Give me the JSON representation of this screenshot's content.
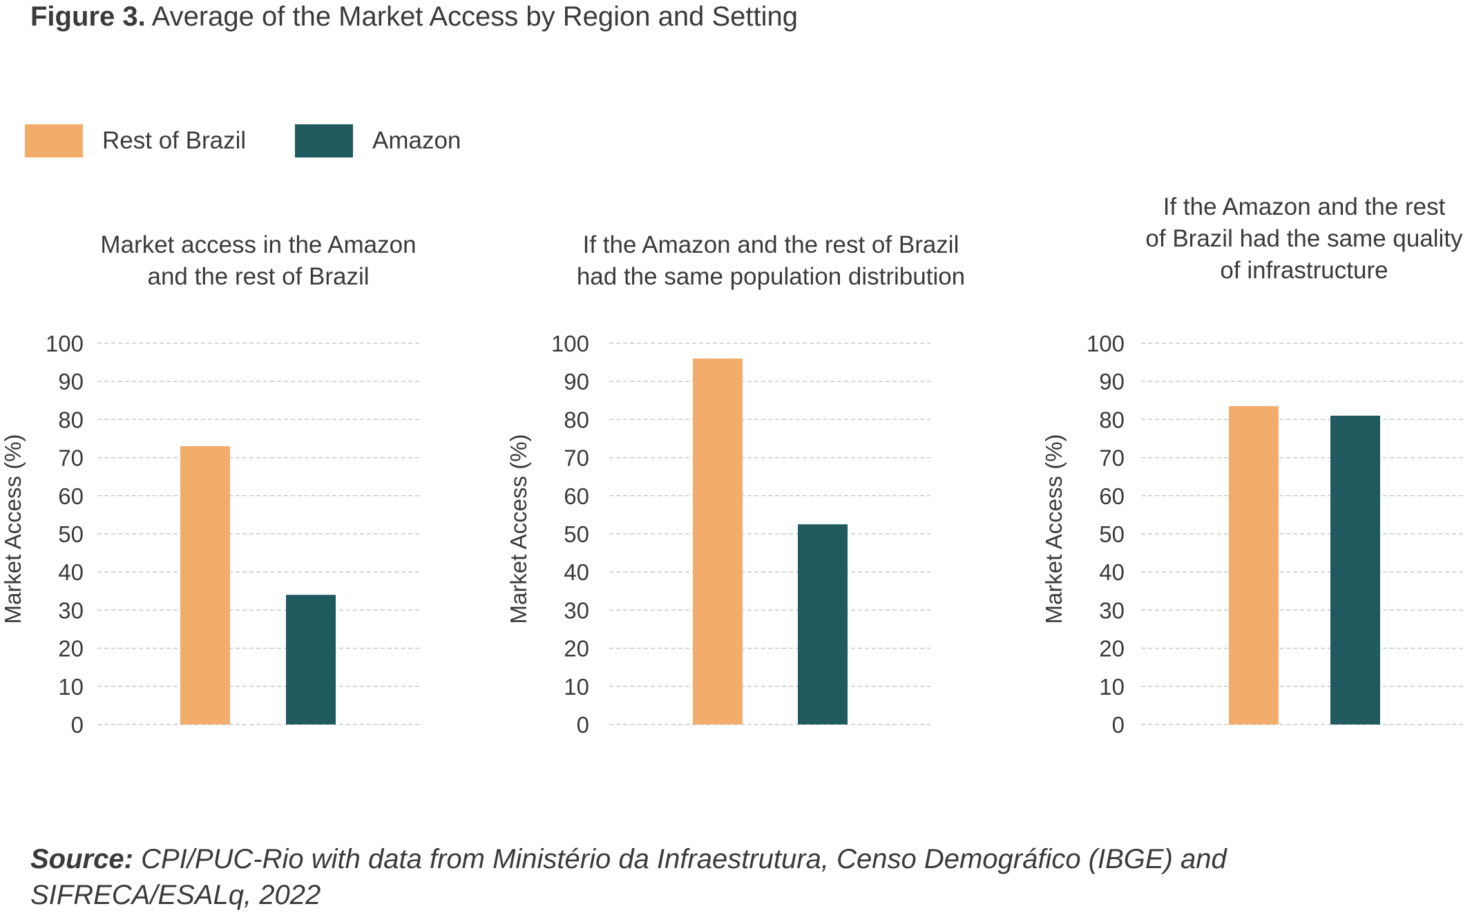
{
  "figure": {
    "label": "Figure 3.",
    "title": "Average of the Market Access by Region and Setting"
  },
  "legend": [
    {
      "name": "Rest of Brazil",
      "color": "#F2AC6B"
    },
    {
      "name": "Amazon",
      "color": "#1E5A5E"
    }
  ],
  "source": {
    "label": "Source:",
    "text": "CPI/PUC-Rio with data from Ministério da Infraestrutura, Censo Demográfico (IBGE) and SIFRECA/ESALq, 2022"
  },
  "chart_data": [
    {
      "type": "bar",
      "title": [
        "Market access in the Amazon",
        "and the rest of Brazil"
      ],
      "ylabel": "Market Access  (%)",
      "ylim": [
        0,
        100
      ],
      "yticks": [
        0,
        10,
        20,
        30,
        40,
        50,
        60,
        70,
        80,
        90,
        100
      ],
      "grid": true,
      "series": [
        {
          "name": "Rest of Brazil",
          "values": [
            73
          ]
        },
        {
          "name": "Amazon",
          "values": [
            34
          ]
        }
      ]
    },
    {
      "type": "bar",
      "title": [
        "If the Amazon and the rest of Brazil",
        "had the same population distribution"
      ],
      "ylabel": "Market Access  (%)",
      "ylim": [
        0,
        100
      ],
      "yticks": [
        0,
        10,
        20,
        30,
        40,
        50,
        60,
        70,
        80,
        90,
        100
      ],
      "grid": true,
      "series": [
        {
          "name": "Rest of Brazil",
          "values": [
            96
          ]
        },
        {
          "name": "Amazon",
          "values": [
            52.5
          ]
        }
      ]
    },
    {
      "type": "bar",
      "title": [
        "If the Amazon and the rest",
        "of Brazil had the same quality",
        "of infrastructure"
      ],
      "ylabel": "Market Access (%)",
      "ylim": [
        0,
        100
      ],
      "yticks": [
        0,
        10,
        20,
        30,
        40,
        50,
        60,
        70,
        80,
        90,
        100
      ],
      "grid": true,
      "series": [
        {
          "name": "Rest of Brazil",
          "values": [
            83.5
          ]
        },
        {
          "name": "Amazon",
          "values": [
            81
          ]
        }
      ]
    }
  ]
}
